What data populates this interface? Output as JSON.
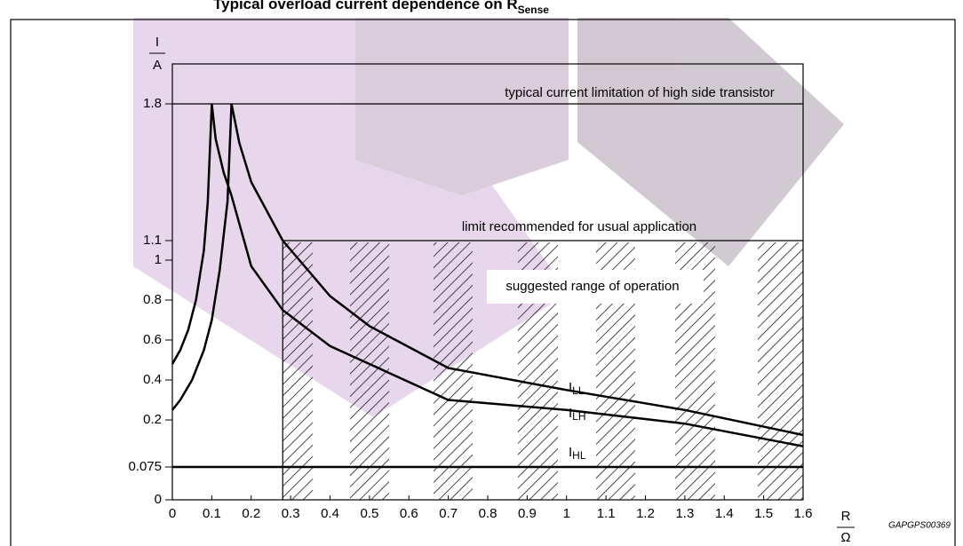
{
  "chart_data": {
    "type": "line",
    "title": "Typical overload current dependence on R",
    "title_sub": "Sense",
    "y_label": "I",
    "y_unit": "A",
    "x_label": "R",
    "x_unit": "Ω",
    "footnote": "GAPGPS00369",
    "xlim": [
      0,
      1.6
    ],
    "ylim": [
      0,
      1.8
    ],
    "xticks": [
      0,
      0.1,
      0.2,
      0.3,
      0.4,
      0.5,
      0.6,
      0.7,
      0.8,
      0.9,
      1.0,
      1.1,
      1.2,
      1.3,
      1.4,
      1.5,
      1.6
    ],
    "yticks": [
      0,
      0.075,
      0.2,
      0.4,
      0.6,
      0.8,
      1,
      1.1,
      1.8
    ],
    "series": [
      {
        "color": "#000000",
        "x": [
          0,
          0.02,
          0.04,
          0.06,
          0.08,
          0.09,
          0.1,
          0.11,
          0.13,
          0.15,
          0.2,
          0.28,
          0.4,
          0.5,
          0.7,
          1.0,
          1.3,
          1.6
        ],
        "values": [
          0.48,
          0.55,
          0.65,
          0.8,
          1.05,
          1.3,
          1.8,
          1.62,
          1.45,
          1.33,
          0.97,
          0.75,
          0.57,
          0.48,
          0.3,
          0.25,
          0.19,
          0.13
        ]
      },
      {
        "color": "#000000",
        "x": [
          0,
          0.02,
          0.05,
          0.08,
          0.1,
          0.12,
          0.14,
          0.15,
          0.17,
          0.2,
          0.28,
          0.4,
          0.5,
          0.7,
          1.0,
          1.3,
          1.6
        ],
        "values": [
          0.25,
          0.3,
          0.4,
          0.55,
          0.7,
          0.95,
          1.3,
          1.8,
          1.6,
          1.4,
          1.1,
          0.82,
          0.67,
          0.46,
          0.35,
          0.25,
          0.16
        ]
      }
    ],
    "hlines": [
      {
        "value": 1.8,
        "label": "typical current limitation of high side transistor"
      },
      {
        "value": 0.075
      }
    ],
    "operating_region": {
      "xlim": [
        0.28,
        1.6
      ],
      "ylim": [
        0,
        1.1
      ],
      "top_label": "limit recommended for usual application",
      "label": "suggested range of operation"
    },
    "curve_labels": [
      {
        "text": "I",
        "sub": "LL"
      },
      {
        "text": "I",
        "sub": "LH"
      },
      {
        "text": "I",
        "sub": "HL"
      }
    ]
  }
}
